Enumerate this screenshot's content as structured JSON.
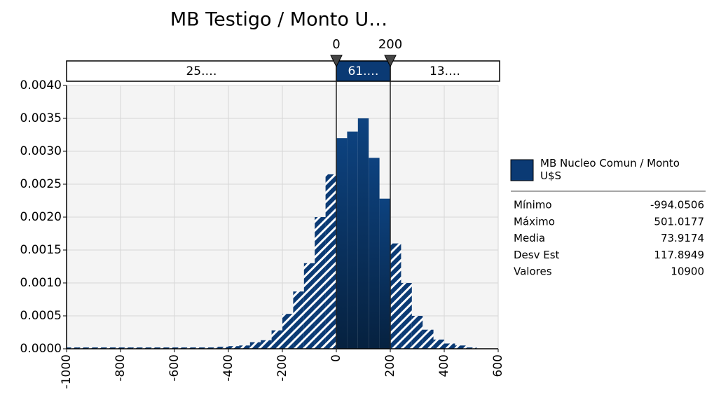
{
  "chart_data": {
    "type": "histogram",
    "title": "MB Testigo / Monto U…",
    "bins": [
      -1000,
      -960,
      -920,
      -880,
      -840,
      -800,
      -760,
      -720,
      -680,
      -640,
      -600,
      -560,
      -520,
      -480,
      -440,
      -400,
      -360,
      -320,
      -280,
      -240,
      -200,
      -160,
      -120,
      -80,
      -40,
      0,
      40,
      80,
      120,
      160,
      200,
      240,
      280,
      320,
      360,
      400,
      440,
      480,
      520
    ],
    "values": [
      2e-05,
      2e-05,
      2e-05,
      2e-05,
      2e-05,
      2e-05,
      2e-05,
      2e-05,
      2e-05,
      2e-05,
      2e-05,
      2e-05,
      2e-05,
      2e-05,
      3e-05,
      4e-05,
      5e-05,
      0.0001,
      0.00013,
      0.00028,
      0.00053,
      0.00087,
      0.0013,
      0.002,
      0.00265,
      0.0032,
      0.0033,
      0.0035,
      0.0029,
      0.00228,
      0.0016,
      0.001,
      0.0005,
      0.00029,
      0.00014,
      8e-05,
      5e-05,
      2e-05
    ],
    "color": "#0b3a74",
    "xlim": [
      -1000,
      600
    ],
    "xticks": [
      -1000,
      -800,
      -600,
      -400,
      -200,
      0,
      200,
      400,
      600
    ],
    "ylim": [
      0,
      0.004
    ],
    "yticks": [
      {
        "value": 0,
        "label": "0.0000"
      },
      {
        "value": 0.0005,
        "label": "0.0005"
      },
      {
        "value": 0.001,
        "label": "0.0010"
      },
      {
        "value": 0.0015,
        "label": "0.0015"
      },
      {
        "value": 0.002,
        "label": "0.0020"
      },
      {
        "value": 0.0025,
        "label": "0.0025"
      },
      {
        "value": 0.003,
        "label": "0.0030"
      },
      {
        "value": 0.0035,
        "label": "0.0035"
      },
      {
        "value": 0.004,
        "label": "0.0040"
      }
    ],
    "grid": true,
    "delimiters": [
      0,
      200
    ],
    "region_labels": [
      "25.…",
      "61.…",
      "13.…"
    ],
    "legend": {
      "name": "MB Nucleo Comun / Monto U$S",
      "color": "#0b3a74"
    },
    "stats": [
      {
        "label": "Mínimo",
        "value": -994.0506
      },
      {
        "label": "Máximo",
        "value": 501.0177
      },
      {
        "label": "Media",
        "value": 73.9174
      },
      {
        "label": "Desv Est",
        "value": 117.8949
      },
      {
        "label": "Valores",
        "value": 10900
      }
    ]
  }
}
